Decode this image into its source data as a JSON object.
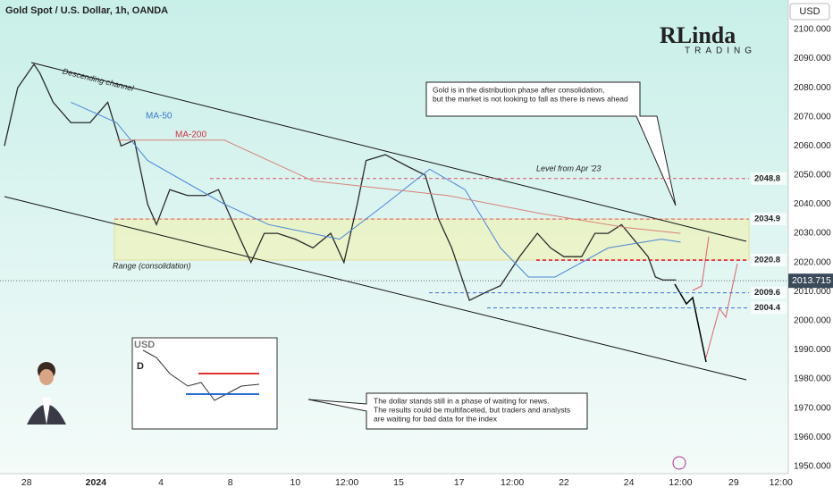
{
  "chart_data": {
    "type": "line",
    "title": "Gold Spot / U.S. Dollar, 1h, OANDA",
    "currency": "USD",
    "xlim": [
      0,
      534
    ],
    "ylim": [
      1947.5,
      2110.1
    ],
    "xticks": [
      {
        "value": 18,
        "label": "28"
      },
      {
        "value": 65,
        "label": "2024"
      },
      {
        "value": 109,
        "label": "4"
      },
      {
        "value": 156,
        "label": "8"
      },
      {
        "value": 200,
        "label": "10"
      },
      {
        "value": 235,
        "label": "12:00"
      },
      {
        "value": 270,
        "label": "15"
      },
      {
        "value": 311,
        "label": "17"
      },
      {
        "value": 347,
        "label": "12:00"
      },
      {
        "value": 382,
        "label": "22"
      },
      {
        "value": 426,
        "label": "24"
      },
      {
        "value": 461,
        "label": "12:00"
      },
      {
        "value": 497,
        "label": "29"
      },
      {
        "value": 529,
        "label": "12:00"
      }
    ],
    "yticks": [
      {
        "value": 1950,
        "label": "1950.000"
      },
      {
        "value": 1960,
        "label": "1960.000"
      },
      {
        "value": 1970,
        "label": "1970.000"
      },
      {
        "value": 1980,
        "label": "1980.000"
      },
      {
        "value": 1990,
        "label": "1990.000"
      },
      {
        "value": 2000,
        "label": "2000.000"
      },
      {
        "value": 2010,
        "label": "2010.000"
      },
      {
        "value": 2020,
        "label": "2020.000"
      },
      {
        "value": 2030,
        "label": "2030.000"
      },
      {
        "value": 2040,
        "label": "2040.000"
      },
      {
        "value": 2050,
        "label": "2050.000"
      },
      {
        "value": 2060,
        "label": "2060.000"
      },
      {
        "value": 2070,
        "label": "2070.000"
      },
      {
        "value": 2080,
        "label": "2080.000"
      },
      {
        "value": 2090,
        "label": "2090.000"
      },
      {
        "value": 2100,
        "label": "2100.000"
      }
    ],
    "series": [
      {
        "color": "#2b2b2b",
        "x": [
          3,
          12,
          23,
          27,
          36,
          48,
          61,
          73,
          82,
          91,
          100,
          106,
          115,
          127,
          139,
          148,
          161,
          170,
          179,
          188,
          200,
          212,
          224,
          233,
          242,
          248,
          261,
          276,
          288,
          297,
          306,
          318,
          330,
          339,
          352,
          364,
          373,
          382,
          394,
          403,
          412,
          421,
          439,
          444,
          449,
          458
        ],
        "values": [
          2060,
          2080,
          2088,
          2085,
          2075,
          2068,
          2068,
          2075,
          2060,
          2062,
          2040,
          2033,
          2045,
          2043,
          2043,
          2045,
          2030,
          2020,
          2030,
          2030,
          2028,
          2025,
          2030,
          2020,
          2040,
          2055,
          2057,
          2053,
          2050,
          2035,
          2025,
          2007,
          2010,
          2012,
          2022,
          2030,
          2025,
          2022,
          2022,
          2030,
          2030,
          2033,
          2022,
          2015,
          2014,
          2014
        ]
      },
      {
        "name": "MA-50",
        "color": "#4a86d8",
        "x": [
          48,
          79,
          100,
          152,
          182,
          230,
          261,
          291,
          315,
          339,
          358,
          376,
          412,
          448,
          461
        ],
        "values": [
          2075,
          2068,
          2055,
          2040,
          2033,
          2028,
          2040,
          2052,
          2045,
          2025,
          2015,
          2015,
          2025,
          2028,
          2027
        ]
      },
      {
        "name": "MA-200",
        "color": "#d9807a",
        "x": [
          79,
          152,
          212,
          303,
          364,
          424,
          461
        ],
        "values": [
          2062,
          2062,
          2048,
          2043,
          2037,
          2032,
          2030
        ]
      }
    ],
    "levels": [
      {
        "value": 2048.8,
        "color": "#e0506a"
      },
      {
        "value": 2034.9,
        "color": "#e0506a"
      },
      {
        "value": 2020.8,
        "color": "#e02040"
      },
      {
        "value": 2009.6,
        "color": "#4070e0"
      },
      {
        "value": 2004.4,
        "color": "#4070e0"
      }
    ],
    "current_price": 2013.715,
    "annotations": {
      "channel": "Descending channel",
      "range": "Range (consolidation)",
      "level": "Level from Apr '23",
      "ma50": "MA-50",
      "ma200": "MA-200"
    },
    "callouts": [
      {
        "lines": [
          "Gold is in the distribution phase after consolidation,",
          "but the market is not looking to fall as there is news ahead"
        ]
      },
      {
        "lines": [
          "The dollar stands still in a phase of waiting for news.",
          "The results could be multifaceted, but traders and analysts",
          "are waiting for bad data for the index"
        ]
      }
    ],
    "logo": {
      "name": "RLinda",
      "sub": "TRADING"
    },
    "inset": {
      "title": "USD",
      "timeframe": "D"
    }
  }
}
